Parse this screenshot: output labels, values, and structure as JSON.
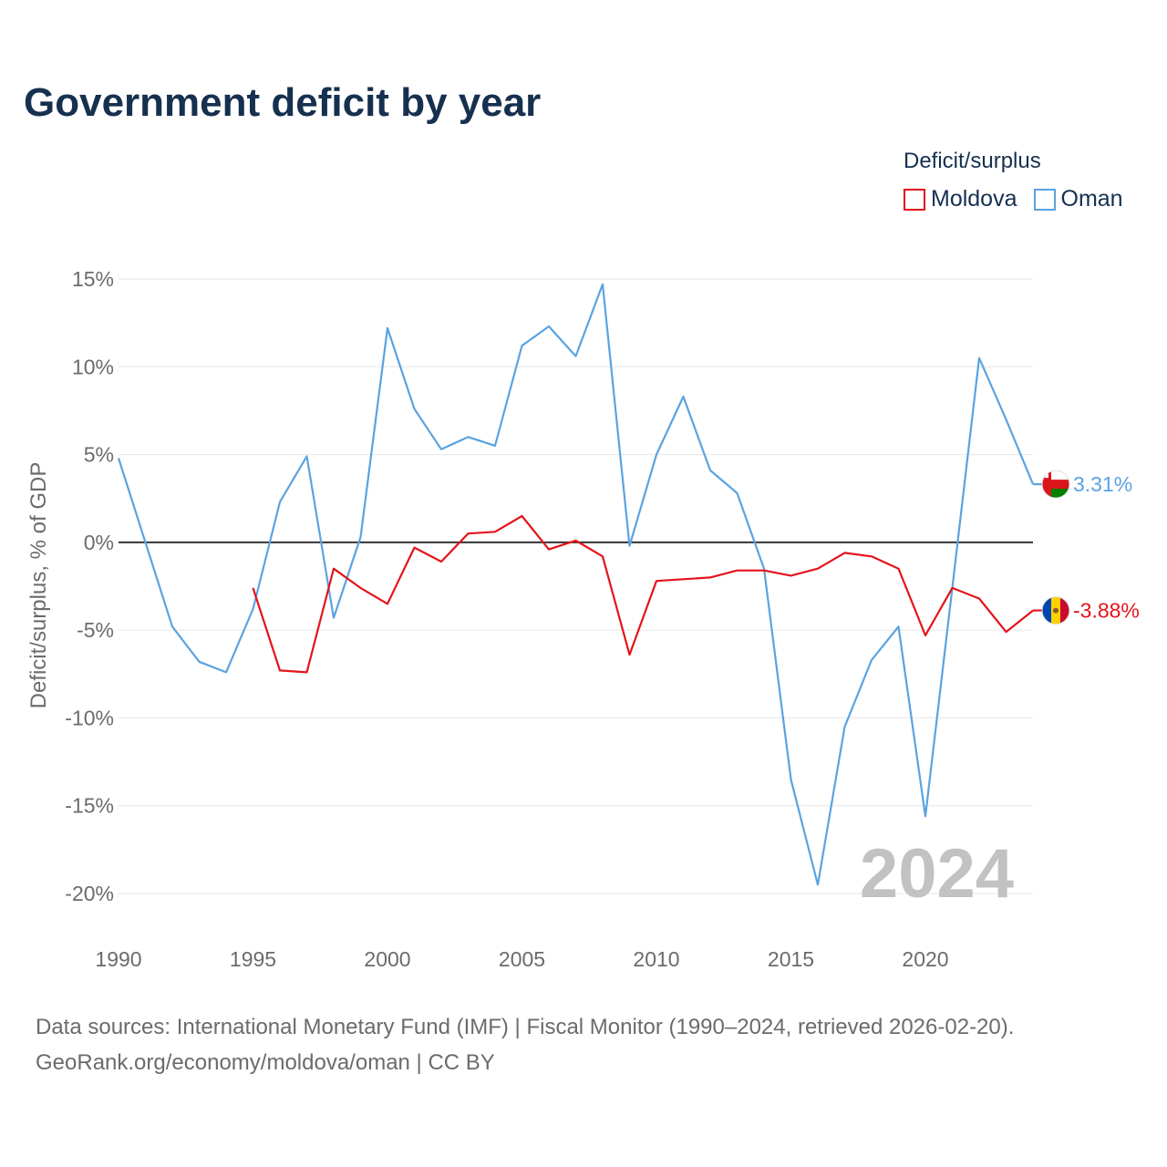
{
  "title": "Government deficit by year",
  "legend": {
    "title": "Deficit/surplus",
    "items": [
      {
        "name": "Moldova",
        "color": "#e3141b"
      },
      {
        "name": "Oman",
        "color": "#5aa3e0"
      }
    ]
  },
  "footer": {
    "line1": "Data sources: International Monetary Fund (IMF) | Fiscal Monitor (1990–2024, retrieved 2026-02-20).",
    "line2": "GeoRank.org/economy/moldova/oman | CC BY"
  },
  "chart_data": {
    "type": "line",
    "title": "Government deficit by year",
    "xlabel": "",
    "ylabel": "Deficit/surplus, % of GDP",
    "xlim": [
      1990,
      2024
    ],
    "ylim": [
      -22,
      16
    ],
    "yticks": [
      15,
      10,
      5,
      0,
      -5,
      -10,
      -15,
      -20
    ],
    "ytick_labels": [
      "15%",
      "10%",
      "5%",
      "0%",
      "-5%",
      "-10%",
      "-15%",
      "-20%"
    ],
    "xticks": [
      1990,
      1995,
      2000,
      2005,
      2010,
      2015,
      2020
    ],
    "xtick_labels": [
      "1990",
      "1995",
      "2000",
      "2005",
      "2010",
      "2015",
      "2020"
    ],
    "watermark_year": "2024",
    "series": [
      {
        "name": "Oman",
        "color": "#5aa3e0",
        "end_label": "3.31%",
        "x": [
          1990,
          1991,
          1992,
          1993,
          1994,
          1995,
          1996,
          1997,
          1998,
          1999,
          2000,
          2001,
          2002,
          2003,
          2004,
          2005,
          2006,
          2007,
          2008,
          2009,
          2010,
          2011,
          2012,
          2013,
          2014,
          2015,
          2016,
          2017,
          2018,
          2019,
          2020,
          2021,
          2022,
          2023,
          2024
        ],
        "values": [
          4.8,
          0.0,
          -4.8,
          -6.8,
          -7.4,
          -3.8,
          2.3,
          4.9,
          -4.3,
          0.3,
          12.2,
          7.6,
          5.3,
          6.0,
          5.5,
          11.2,
          12.3,
          10.6,
          14.7,
          -0.2,
          5.0,
          8.3,
          4.1,
          2.8,
          -1.5,
          -13.5,
          -19.5,
          -10.5,
          -6.7,
          -4.8,
          -15.6,
          -2.6,
          10.5,
          7.0,
          3.31
        ]
      },
      {
        "name": "Moldova",
        "color": "#e3141b",
        "end_label": "-3.88%",
        "x": [
          1995,
          1996,
          1997,
          1998,
          1999,
          2000,
          2001,
          2002,
          2003,
          2004,
          2005,
          2006,
          2007,
          2008,
          2009,
          2010,
          2011,
          2012,
          2013,
          2014,
          2015,
          2016,
          2017,
          2018,
          2019,
          2020,
          2021,
          2022,
          2023,
          2024
        ],
        "values": [
          -2.6,
          -7.3,
          -7.4,
          -1.5,
          -2.6,
          -3.5,
          -0.3,
          -1.1,
          0.5,
          0.6,
          1.5,
          -0.4,
          0.1,
          -0.8,
          -6.4,
          -2.2,
          -2.1,
          -2.0,
          -1.6,
          -1.6,
          -1.9,
          -1.5,
          -0.6,
          -0.8,
          -1.5,
          -5.3,
          -2.6,
          -3.2,
          -5.1,
          -3.88
        ]
      }
    ]
  }
}
